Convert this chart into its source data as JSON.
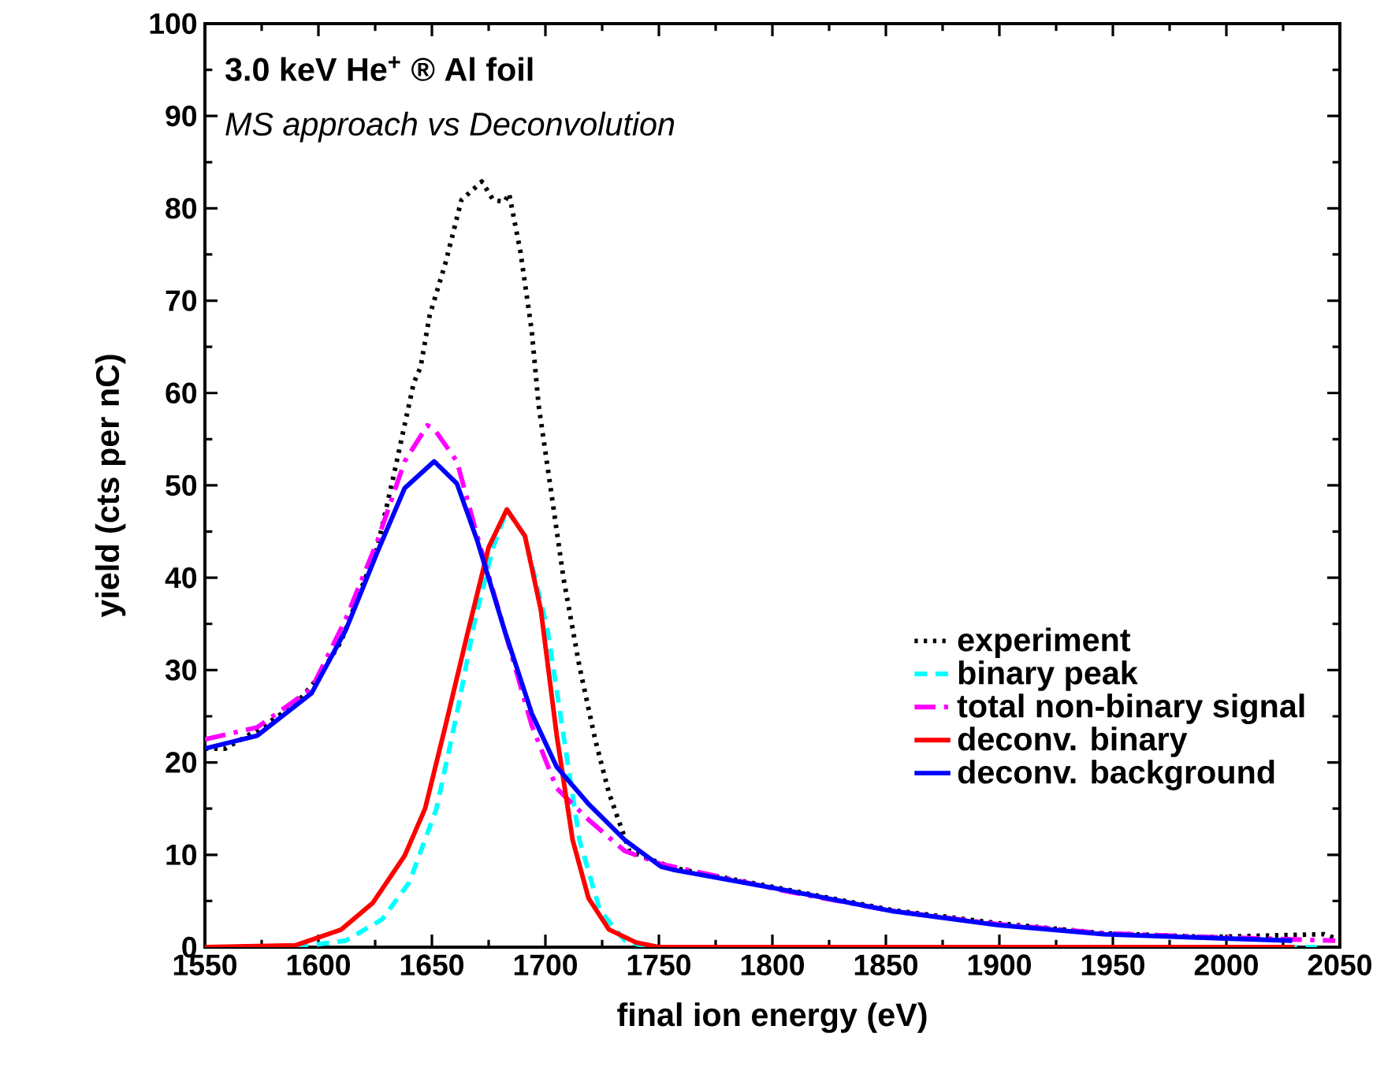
{
  "chart_data": {
    "type": "line",
    "title": "3.0 keV He$^{+}$ ®  Al foil",
    "subtitle": "MS approach vs Deconvolution",
    "xlabel": "final ion energy (eV)",
    "ylabel": "yield (cts per nC)",
    "xlim": [
      1550,
      2050
    ],
    "ylim": [
      0,
      100
    ],
    "xticks": [
      1550,
      1600,
      1650,
      1700,
      1750,
      1800,
      1850,
      1900,
      1950,
      2000,
      2050
    ],
    "yticks": [
      0,
      10,
      20,
      30,
      40,
      50,
      60,
      70,
      80,
      90,
      100
    ],
    "grid": false,
    "legend": "right",
    "marker": "none",
    "series": [
      {
        "name": "experiment",
        "color": "#000000",
        "line_style": "dotted",
        "x": [
          1550,
          1559,
          1573,
          1590,
          1600,
          1610,
          1619,
          1626,
          1633,
          1642,
          1645,
          1649,
          1656,
          1663,
          1672,
          1677,
          1682,
          1684,
          1689,
          1694,
          1697,
          1703,
          1708,
          1715,
          1722,
          1728,
          1737,
          1756,
          1807,
          1853,
          1899,
          1946,
          1992,
          2043,
          2050
        ],
        "values": [
          21.5,
          21.5,
          23.5,
          26.3,
          29.2,
          33.1,
          38.9,
          43.3,
          50.9,
          61.1,
          62.8,
          68.4,
          74.1,
          80.9,
          82.9,
          80.9,
          80.7,
          81.6,
          75.3,
          66.7,
          58.7,
          48.5,
          39.9,
          30.4,
          22.4,
          16.7,
          10.4,
          8.6,
          6.2,
          4.0,
          2.6,
          1.5,
          1.1,
          1.4,
          0.8
        ]
      },
      {
        "name": "binary peak",
        "color": "#00ffff",
        "line_style": "dashed",
        "x": [
          1590,
          1612,
          1628,
          1640,
          1652,
          1661,
          1669,
          1677,
          1683,
          1691,
          1701,
          1708,
          1715,
          1724,
          1735,
          1745,
          2040
        ],
        "values": [
          0,
          0.7,
          3,
          7,
          15,
          25.3,
          35.5,
          43.3,
          47.4,
          44.5,
          34.3,
          22.9,
          11.6,
          4,
          0.7,
          0,
          0
        ]
      },
      {
        "name": "total non-binary signal",
        "color": "#ff00ff",
        "line_style": "dashdot",
        "x": [
          1550,
          1573,
          1597,
          1612,
          1626,
          1638,
          1648,
          1651,
          1661,
          1670,
          1682,
          1694,
          1705,
          1719,
          1735,
          1751,
          1807,
          1853,
          1899,
          1946,
          1992,
          2048
        ],
        "values": [
          22.5,
          23.8,
          28,
          35.5,
          44,
          52.6,
          56.5,
          56.1,
          52.6,
          44.5,
          34.3,
          24,
          17.2,
          13.8,
          10.4,
          9,
          6,
          3.9,
          2.5,
          1.5,
          1.1,
          0.7
        ]
      },
      {
        "name": "deconv. binary",
        "color": "#ff0000",
        "line_style": "solid",
        "x": [
          1550,
          1590,
          1610,
          1624,
          1638,
          1647,
          1656,
          1666,
          1675,
          1683,
          1691,
          1698,
          1705,
          1712,
          1719,
          1728,
          1740,
          1750,
          2030
        ],
        "values": [
          0,
          0.2,
          1.9,
          4.8,
          9.9,
          15,
          24,
          34.3,
          43.3,
          47.4,
          44.5,
          36.5,
          22.9,
          11.6,
          5.3,
          1.9,
          0.5,
          0,
          0
        ]
      },
      {
        "name": "deconv. background",
        "color": "#0000ff",
        "line_style": "solid",
        "x": [
          1550,
          1573,
          1597,
          1612,
          1626,
          1638,
          1651,
          1661,
          1670,
          1682,
          1694,
          1705,
          1719,
          1735,
          1751,
          1756,
          1807,
          1853,
          1899,
          1946,
          1992,
          2029
        ],
        "values": [
          21.5,
          22.9,
          27.5,
          34.3,
          42.8,
          49.7,
          52.6,
          50.2,
          44,
          34.3,
          25.3,
          19.5,
          15.5,
          11.6,
          8.7,
          8.4,
          6.1,
          3.9,
          2.4,
          1.4,
          1,
          0.7
        ]
      }
    ]
  }
}
